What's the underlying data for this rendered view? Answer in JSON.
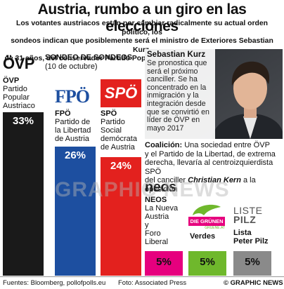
{
  "title": "Austria, rumbo a un giro en las elecciones",
  "subtitle_lines": [
    "Los votantes austriacos están por cambiar radicalmente su actual orden político, los",
    "sondeos indican que posiblemente será el ministro de Exteriores Sebastian Kurz,",
    "de 31 años, del conservador Partido Popular, quien formará un nuevo gobierno"
  ],
  "poll_title": "SONDEO DE SONDEOS",
  "poll_date": "(10 de octubre)",
  "colors": {
    "ovp": "#1a1a1a",
    "fpo": "#1d4fa0",
    "spo": "#e3211e",
    "neos": "#e6007e",
    "greens": "#6fb82c",
    "pilz": "#8a8a8a"
  },
  "chart_data": {
    "type": "bar",
    "unit": "%",
    "categories": [
      "ÖVP",
      "FPÖ",
      "SPÖ",
      "NEOS",
      "Verdes",
      "Lista Peter Pilz"
    ],
    "values": [
      33,
      26,
      24,
      5,
      5,
      5
    ],
    "value_labels": [
      "33%",
      "26%",
      "24%",
      "5%",
      "5%",
      "5%"
    ]
  },
  "parties": {
    "ovp": {
      "logo": "ÖVP",
      "name_lines": [
        "ÖVP",
        "Partido",
        "Popular",
        "Austriaco"
      ]
    },
    "fpo": {
      "logo": "FPÖ",
      "name_lines": [
        "FPÖ",
        "Partido de",
        "la Libertad",
        "de Austria"
      ]
    },
    "spo": {
      "logo": "SPÖ",
      "name_lines": [
        "SPÖ",
        "Partido",
        "Social",
        "demócrata",
        "de Austria"
      ]
    },
    "neos": {
      "logo": "neos",
      "name_lines": [
        "NEOS",
        "La Nueva",
        "Austria",
        "y",
        "Foro",
        "Liberal"
      ]
    },
    "greens": {
      "logo": "DIE GRÜNEN",
      "logo_sub": "GRUENE.AT",
      "name": "Verdes"
    },
    "pilz": {
      "logo_lines": [
        "LISTE",
        "PILZ"
      ],
      "name_lines": [
        "Lista",
        "Peter Pilz"
      ]
    }
  },
  "profile": {
    "name": "Sebastian Kurz",
    "bio_lines": [
      "Se pronostica que",
      "será el próximo",
      "canciller. Se ha",
      "concentrado en la",
      "inmigración y la",
      "integración desde",
      "que se convirtió en",
      "líder de ÖVP en",
      "mayo 2017"
    ]
  },
  "coalition": {
    "label": "Coalición:",
    "text_lines": [
      " Una sociedad entre ÖVP",
      "y el Partido de la Libertad, de extrema",
      "derecha, llevaría al centroizquierdista SPÖ",
      "del canciller "
    ],
    "person": "Christian Kern",
    "tail": " a la oposición"
  },
  "footer": {
    "sources": "Fuentes: Bloomberg, pollofpolls.eu",
    "photo": "Foto: Associated Press",
    "credit": "© GRAPHIC NEWS"
  },
  "watermark": "GRAPHIC NEWS"
}
